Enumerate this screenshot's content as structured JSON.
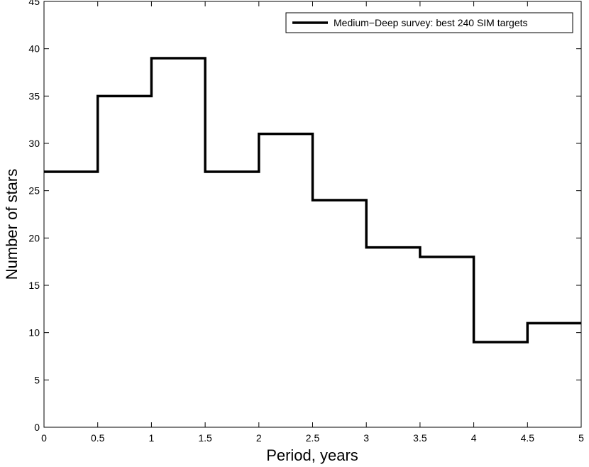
{
  "chart_data": {
    "type": "line",
    "style": "step-histogram",
    "xlabel": "Period, years",
    "ylabel": "Number of stars",
    "xlim": [
      0,
      5
    ],
    "ylim": [
      0,
      45
    ],
    "xticks": [
      "0",
      "0.5",
      "1",
      "1.5",
      "2",
      "2.5",
      "3",
      "3.5",
      "4",
      "4.5",
      "5"
    ],
    "yticks": [
      "0",
      "5",
      "10",
      "15",
      "20",
      "25",
      "30",
      "35",
      "40",
      "45"
    ],
    "grid": false,
    "legend_position": "top-right",
    "series": [
      {
        "name": "Medium−Deep survey: best 240 SIM targets",
        "color": "#000000",
        "bin_edges": [
          0,
          0.5,
          1,
          1.5,
          2,
          2.5,
          3,
          3.5,
          4,
          4.5,
          5
        ],
        "values": [
          27,
          35,
          39,
          27,
          31,
          24,
          19,
          18,
          9,
          11
        ]
      }
    ]
  }
}
